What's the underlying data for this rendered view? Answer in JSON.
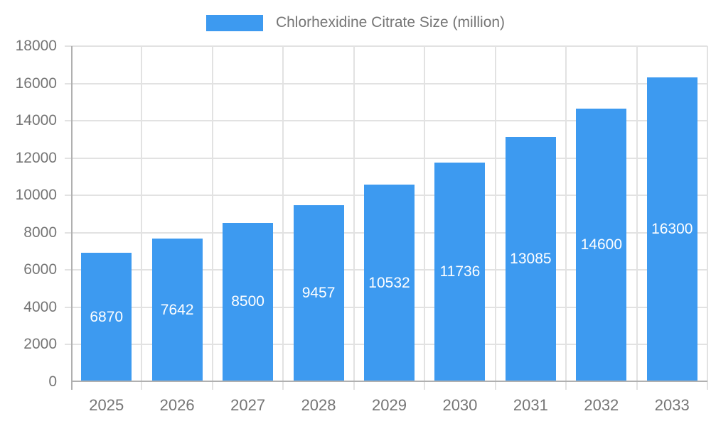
{
  "legend": {
    "label": "Chlorhexidine Citrate Size (million)"
  },
  "chart_data": {
    "type": "bar",
    "title": "Chlorhexidine Citrate Size (million)",
    "series_name": "Chlorhexidine Citrate Size (million)",
    "categories": [
      "2025",
      "2026",
      "2027",
      "2028",
      "2029",
      "2030",
      "2031",
      "2032",
      "2033"
    ],
    "values": [
      6870,
      7642,
      8500,
      9457,
      10532,
      11736,
      13085,
      14600,
      16300
    ],
    "value_labels": [
      "6870",
      "7642",
      "8500",
      "9457",
      "10532",
      "11736",
      "13085",
      "14600",
      "16300"
    ],
    "xlabel": "",
    "ylabel": "",
    "ylim": [
      0,
      18000
    ],
    "ytick_step": 2000,
    "ytick_labels": [
      "0",
      "2000",
      "4000",
      "6000",
      "8000",
      "10000",
      "12000",
      "14000",
      "16000",
      "18000"
    ],
    "grid": true,
    "legend_position": "top",
    "bar_color": "#3D9AF0",
    "value_label_color": "#ffffff",
    "axis_label_color": "#757575",
    "gridline_color": "#E2E2E2",
    "axis_line_color": "#B0B0B0",
    "background_color": "#ffffff"
  }
}
